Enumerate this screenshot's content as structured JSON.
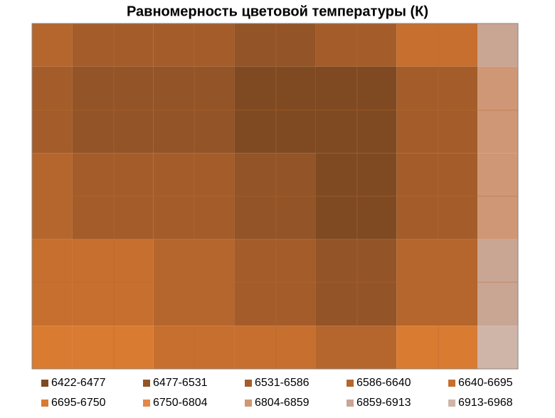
{
  "chart_data": {
    "type": "contour",
    "title": "Равномерность цветовой температуры (К)",
    "z": [
      [
        6586,
        6560,
        6540,
        6520,
        6540,
        6650,
        6900
      ],
      [
        6560,
        6520,
        6500,
        6470,
        6450,
        6560,
        6850
      ],
      [
        6600,
        6580,
        6540,
        6500,
        6440,
        6580,
        6830
      ],
      [
        6680,
        6650,
        6620,
        6560,
        6500,
        6620,
        6870
      ],
      [
        6720,
        6700,
        6690,
        6640,
        6600,
        6700,
        6960
      ]
    ],
    "levels": [
      6422,
      6477,
      6531,
      6586,
      6640,
      6695,
      6750,
      6804,
      6859,
      6913,
      6968
    ],
    "level_labels": [
      "6422-6477",
      "6477-6531",
      "6531-6586",
      "6586-6640",
      "6640-6695",
      "6695-6750",
      "6750-6804",
      "6804-6859",
      "6859-6913",
      "6913-6968"
    ],
    "colors": [
      "#7f4a22",
      "#935427",
      "#a45d2a",
      "#b5662c",
      "#c66f2e",
      "#d97b30",
      "#e3884a",
      "#cf9775",
      "#c9a593",
      "#cfb5a8"
    ]
  }
}
